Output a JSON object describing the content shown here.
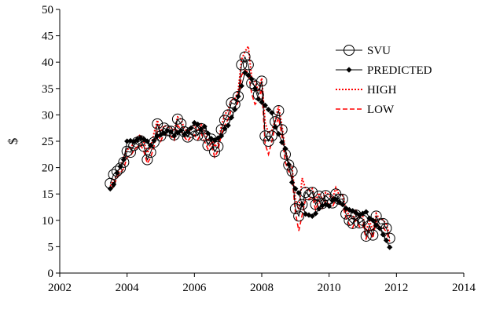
{
  "chart_data": {
    "type": "line",
    "title": "",
    "xlabel": "",
    "ylabel": "$",
    "xlim": [
      2002,
      2014
    ],
    "ylim": [
      0,
      50
    ],
    "x_ticks": [
      "2002",
      "2004",
      "2006",
      "2008",
      "2010",
      "2012",
      "2014"
    ],
    "y_ticks": [
      "0",
      "5",
      "10",
      "15",
      "20",
      "25",
      "30",
      "35",
      "40",
      "45",
      "50"
    ],
    "grid": false,
    "legend_position": "top-right",
    "x": [
      2003.5,
      2003.6,
      2003.7,
      2003.8,
      2003.9,
      2004.0,
      2004.1,
      2004.2,
      2004.3,
      2004.4,
      2004.5,
      2004.6,
      2004.7,
      2004.8,
      2004.9,
      2005.0,
      2005.1,
      2005.2,
      2005.3,
      2005.4,
      2005.5,
      2005.6,
      2005.7,
      2005.8,
      2005.9,
      2006.0,
      2006.1,
      2006.2,
      2006.3,
      2006.4,
      2006.5,
      2006.6,
      2006.7,
      2006.8,
      2006.9,
      2007.0,
      2007.1,
      2007.2,
      2007.3,
      2007.4,
      2007.5,
      2007.6,
      2007.7,
      2007.8,
      2007.9,
      2008.0,
      2008.1,
      2008.2,
      2008.3,
      2008.4,
      2008.5,
      2008.6,
      2008.7,
      2008.8,
      2008.9,
      2009.0,
      2009.1,
      2009.2,
      2009.3,
      2009.4,
      2009.5,
      2009.6,
      2009.7,
      2009.8,
      2009.9,
      2010.0,
      2010.1,
      2010.2,
      2010.3,
      2010.4,
      2010.5,
      2010.6,
      2010.7,
      2010.8,
      2010.9,
      2011.0,
      2011.1,
      2011.2,
      2011.3,
      2011.4,
      2011.5,
      2011.6,
      2011.7,
      2011.8
    ],
    "series": [
      {
        "name": "SVU",
        "color": "#000000",
        "style": "circle-line",
        "values": [
          17.0,
          18.7,
          19.3,
          19.9,
          21.0,
          23.1,
          22.9,
          24.2,
          24.8,
          25.1,
          24.0,
          21.5,
          22.9,
          24.8,
          28.3,
          26.0,
          27.5,
          27.0,
          26.9,
          26.2,
          29.2,
          28.3,
          26.8,
          25.8,
          26.7,
          27.0,
          26.1,
          27.4,
          26.0,
          24.2,
          25.4,
          23.0,
          24.0,
          27.2,
          29.0,
          30.0,
          32.3,
          32.0,
          33.5,
          39.5,
          41.0,
          39.5,
          36.0,
          35.5,
          33.8,
          36.4,
          26.0,
          25.0,
          26.0,
          28.7,
          30.8,
          27.2,
          22.5,
          20.5,
          19.3,
          12.2,
          10.8,
          13.0,
          15.3,
          14.8,
          15.3,
          13.0,
          14.6,
          13.2,
          14.7,
          14.0,
          13.3,
          15.0,
          14.0,
          14.0,
          11.2,
          10.0,
          9.4,
          11.0,
          9.5,
          10.0,
          7.0,
          9.0,
          7.2,
          10.8,
          9.3,
          9.4,
          8.5,
          6.6
        ]
      },
      {
        "name": "PREDICTED",
        "color": "#000000",
        "style": "diamond-line",
        "values": [
          16.0,
          16.8,
          19.0,
          20.2,
          21.5,
          25.0,
          25.1,
          24.9,
          25.3,
          25.6,
          25.4,
          25.0,
          24.2,
          25.1,
          26.0,
          26.2,
          26.5,
          27.0,
          26.8,
          26.0,
          26.6,
          27.0,
          26.3,
          26.8,
          27.5,
          28.5,
          28.2,
          27.3,
          27.8,
          26.5,
          25.5,
          25.2,
          25.6,
          26.0,
          27.4,
          28.0,
          29.5,
          31.0,
          33.5,
          35.5,
          38.0,
          37.5,
          36.8,
          35.0,
          33.0,
          32.4,
          31.8,
          31.0,
          30.4,
          27.7,
          26.4,
          24.8,
          23.6,
          20.6,
          17.2,
          16.0,
          15.2,
          13.0,
          11.2,
          11.0,
          10.8,
          11.3,
          12.2,
          12.8,
          13.0,
          12.7,
          13.8,
          14.0,
          13.5,
          13.0,
          12.3,
          12.0,
          11.8,
          11.4,
          11.0,
          11.3,
          11.6,
          10.4,
          10.0,
          9.1,
          8.5,
          7.3,
          6.2,
          4.9
        ]
      },
      {
        "name": "HIGH",
        "color": "#ff0000",
        "style": "dotted",
        "values": [
          16.5,
          17.7,
          18.5,
          20.0,
          22.0,
          23.5,
          23.6,
          24.8,
          25.8,
          26.2,
          24.8,
          22.8,
          23.9,
          26.5,
          29.0,
          26.8,
          28.0,
          27.7,
          27.6,
          27.0,
          29.6,
          29.2,
          27.4,
          26.6,
          27.4,
          28.0,
          26.9,
          28.2,
          26.8,
          25.0,
          25.8,
          24.0,
          24.6,
          27.8,
          30.0,
          31.0,
          32.9,
          33.0,
          34.5,
          40.5,
          42.0,
          43.0,
          37.0,
          36.3,
          34.5,
          37.0,
          28.5,
          26.5,
          27.0,
          29.0,
          31.6,
          27.9,
          23.3,
          21.0,
          20.0,
          14.0,
          12.0,
          18.0,
          16.0,
          15.5,
          16.0,
          13.8,
          15.2,
          14.0,
          15.3,
          14.8,
          14.0,
          16.2,
          14.8,
          14.8,
          12.0,
          10.8,
          10.3,
          11.8,
          10.4,
          10.8,
          8.0,
          9.9,
          8.0,
          11.3,
          10.2,
          10.1,
          9.2,
          7.2
        ]
      },
      {
        "name": "LOW",
        "color": "#ff0000",
        "style": "dashed",
        "values": [
          15.7,
          16.5,
          18.0,
          19.0,
          19.8,
          22.0,
          22.2,
          23.2,
          23.9,
          24.4,
          23.0,
          20.8,
          21.9,
          24.0,
          26.8,
          25.0,
          26.5,
          26.1,
          26.0,
          25.2,
          28.0,
          27.3,
          25.8,
          25.0,
          25.9,
          26.2,
          25.3,
          26.5,
          25.0,
          23.5,
          24.7,
          22.0,
          23.2,
          26.3,
          28.0,
          29.2,
          31.0,
          31.0,
          32.5,
          37.5,
          38.5,
          38.0,
          34.0,
          32.0,
          32.8,
          35.0,
          24.5,
          22.5,
          25.0,
          27.8,
          29.5,
          26.0,
          21.0,
          19.3,
          18.2,
          11.5,
          8.0,
          11.0,
          14.0,
          14.0,
          14.5,
          12.0,
          13.8,
          12.3,
          13.8,
          13.0,
          12.5,
          14.0,
          13.0,
          13.0,
          10.5,
          9.2,
          8.6,
          10.2,
          8.8,
          9.2,
          6.5,
          8.2,
          6.6,
          10.0,
          8.6,
          8.7,
          7.8,
          6.0
        ]
      }
    ]
  }
}
